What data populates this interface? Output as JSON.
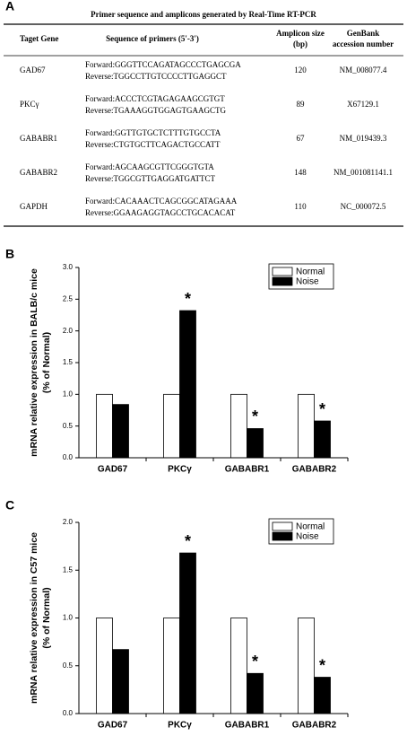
{
  "table": {
    "label": "A",
    "title": "Primer sequence and amplicons generated by Real-Time RT-PCR",
    "header": [
      [
        "Taget Gene"
      ],
      [
        "Sequence of primers (5'-3')"
      ],
      [
        "Amplicon size",
        "(bp)"
      ],
      [
        "GenBank",
        "accession number"
      ]
    ],
    "rows": [
      [
        "GAD67",
        [
          "Forward:GGGTTCCAGATAGCCCTGAGCGA",
          "Reverse:TGGCCTTGTCCCCTTGAGGCT"
        ],
        120,
        "NM_008077.4"
      ],
      [
        "PKCγ",
        [
          "Forward:ACCCTCGTAGAGAAGCGTGT",
          "Reverse:TGAAAGGTGGAGTGAAGCTG"
        ],
        89,
        "X67129.1"
      ],
      [
        "GABABR1",
        [
          "Forward:GGTTGTGCTCTTTGTGCCTA",
          "Reverse:CTGTGCTTCAGACTGCCATT"
        ],
        67,
        "NM_019439.3"
      ],
      [
        "GABABR2",
        [
          "Forward:AGCAAGCGTTCGGGTGTA",
          "Reverse:TGGCGTTGAGGATGATTCT"
        ],
        148,
        "NM_001081141.1"
      ],
      [
        "GAPDH",
        [
          "Forward:CACAAACTCAGCGGCATAGAAA",
          "Reverse:GGAAGAGGTAGCCTGCACACAT"
        ],
        110,
        "NC_000072.5"
      ]
    ]
  },
  "chart_data": [
    {
      "type": "bar",
      "label": "B",
      "ylabel": [
        "mRNA relative expression in BALB/c mice",
        "(% of Normal)"
      ],
      "categories": [
        "GAD67",
        "PKCγ",
        "GABABR1",
        "GABABR2"
      ],
      "series": [
        {
          "name": "Normal",
          "color": "#ffffff",
          "values": [
            1,
            1,
            1,
            1
          ]
        },
        {
          "name": "Noise",
          "color": "#000000",
          "values": [
            0.84,
            2.32,
            0.46,
            0.58
          ]
        }
      ],
      "annotations": [
        null,
        "*",
        "*",
        "*"
      ],
      "ylim": [
        0,
        3.0
      ],
      "yticks": [
        {
          "value": 0,
          "label": "0.0"
        },
        0.5,
        {
          "value": 1,
          "label": "1.0"
        },
        1.5,
        {
          "value": 2,
          "label": "2.0"
        },
        2.5,
        {
          "value": 3,
          "label": "3.0"
        }
      ],
      "legend": "upper right"
    },
    {
      "type": "bar",
      "label": "C",
      "ylabel": [
        "mRNA relative expression in C57 mice",
        "(% of Normal)"
      ],
      "categories": [
        "GAD67",
        "PKCγ",
        "GABABR1",
        "GABABR2"
      ],
      "series": [
        {
          "name": "Normal",
          "color": "#ffffff",
          "values": [
            1,
            1,
            1,
            1
          ]
        },
        {
          "name": "Noise",
          "color": "#000000",
          "values": [
            0.67,
            1.68,
            0.42,
            0.38
          ]
        }
      ],
      "annotations": [
        null,
        "*",
        "*",
        "*"
      ],
      "ylim": [
        0,
        2.0
      ],
      "yticks": [
        {
          "value": 0,
          "label": "0.0"
        },
        0.5,
        {
          "value": 1,
          "label": "1.0"
        },
        1.5,
        {
          "value": 2,
          "label": "2.0"
        }
      ],
      "legend": "upper right"
    }
  ]
}
